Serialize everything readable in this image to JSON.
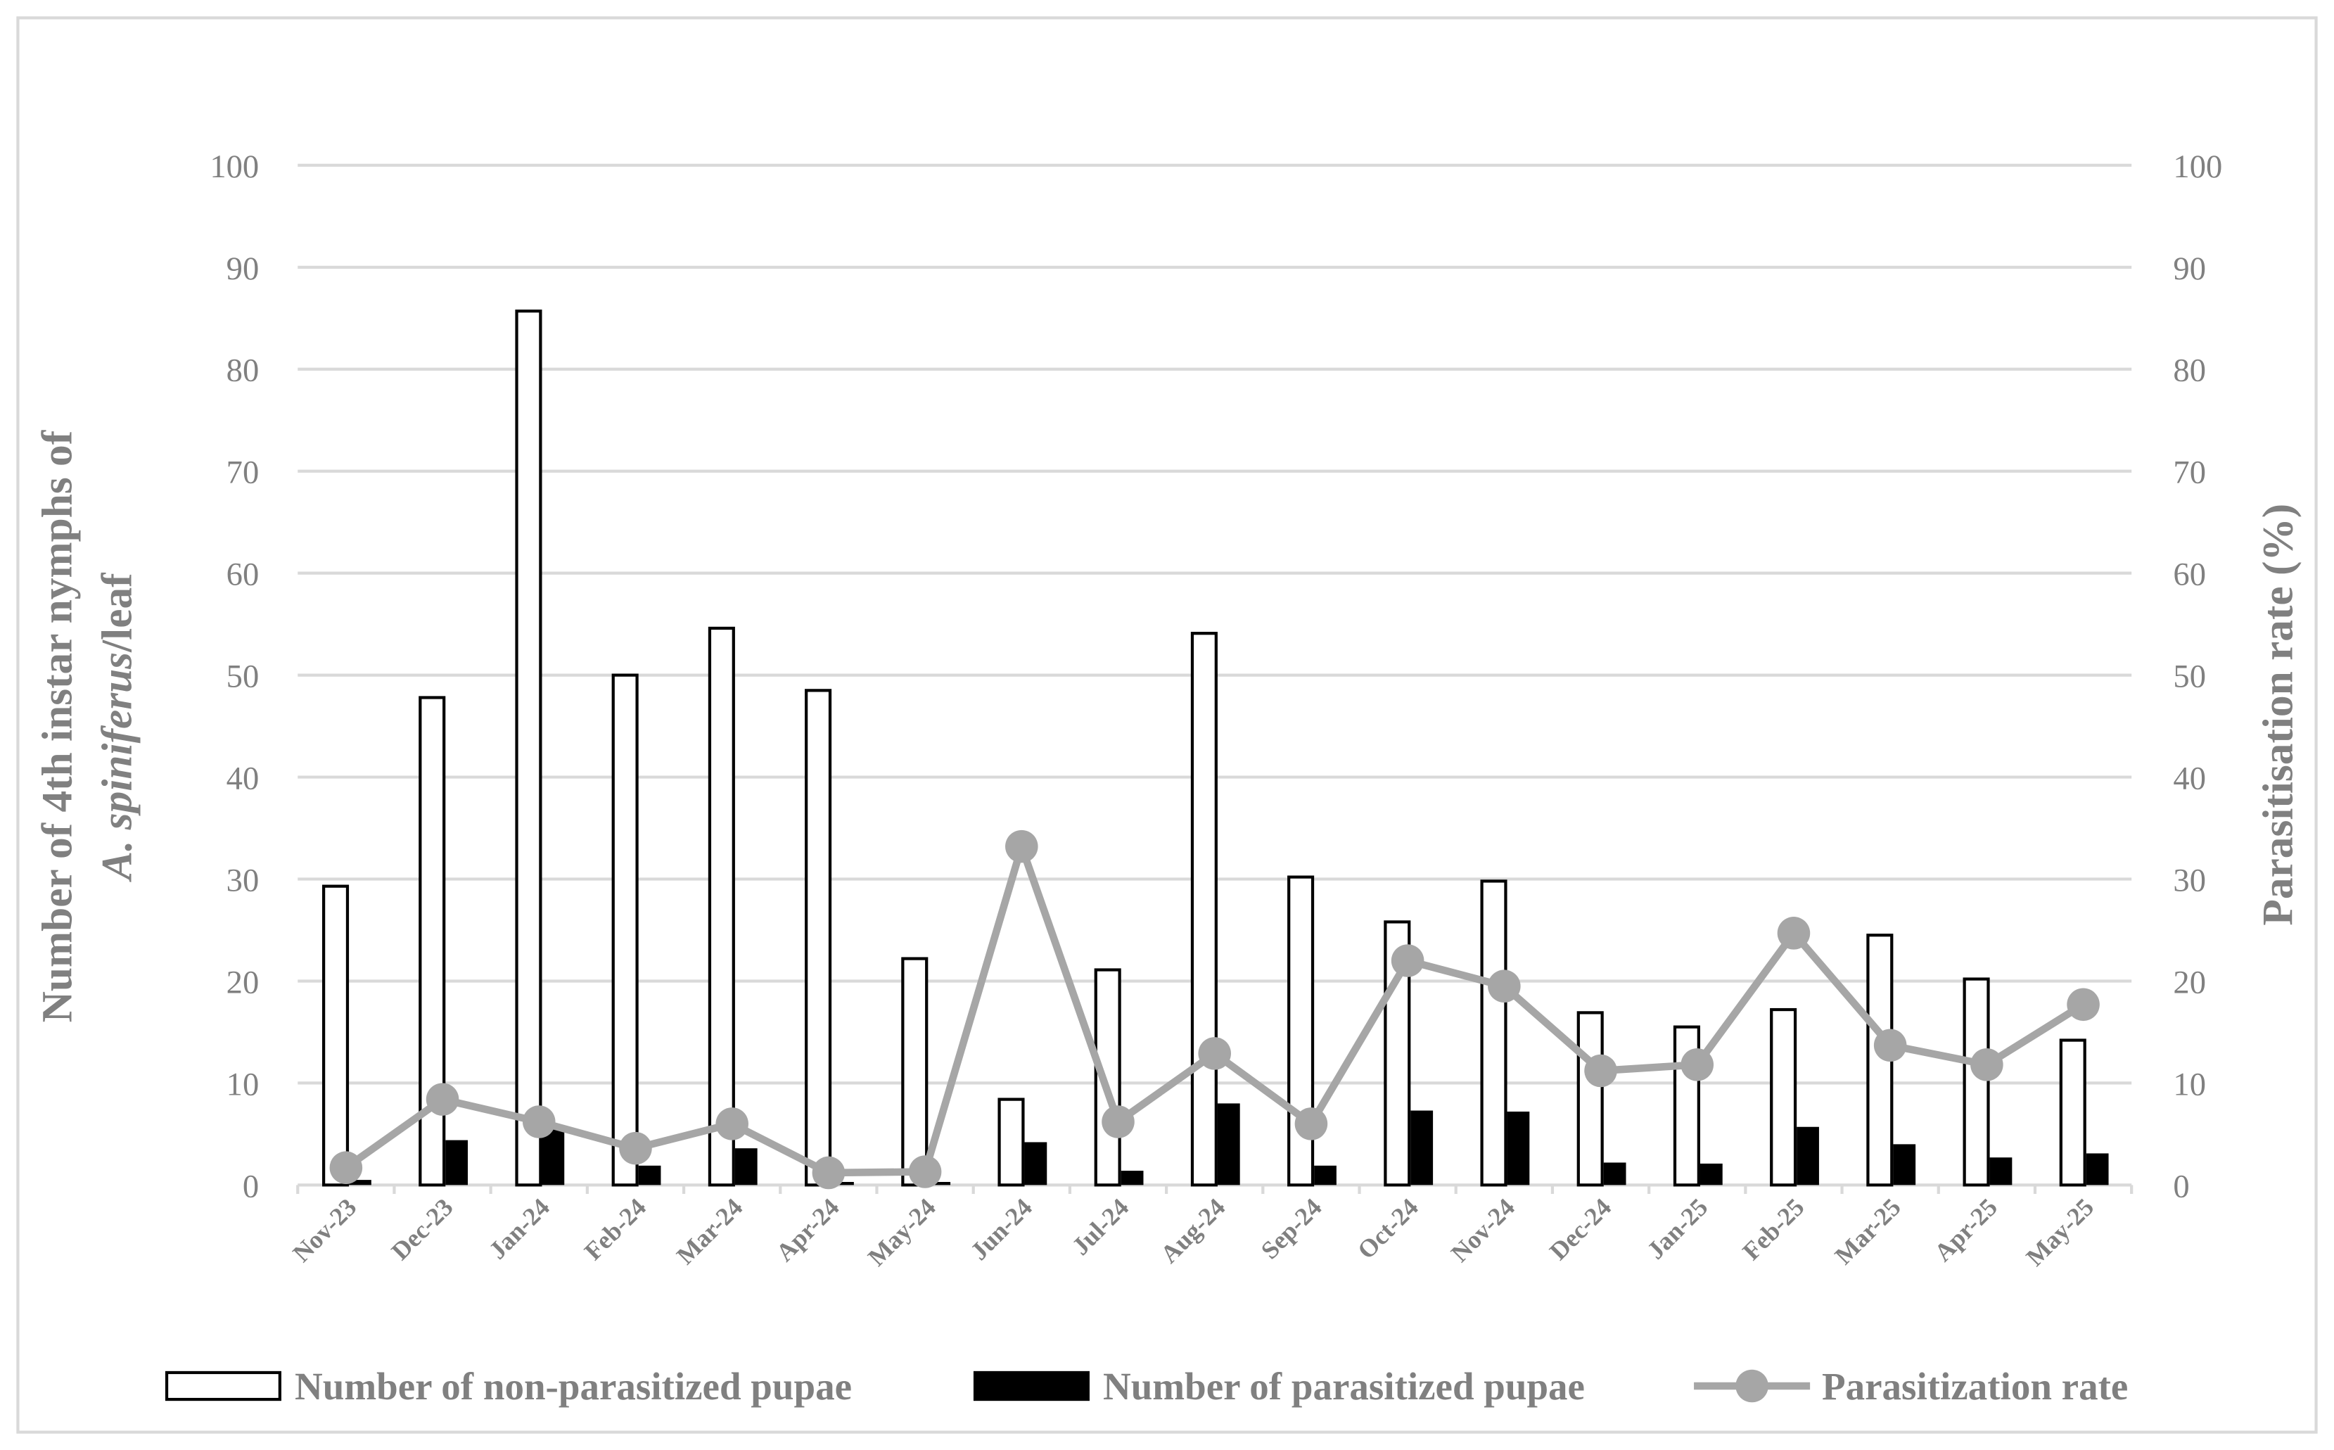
{
  "chart_data": {
    "type": "bar_line",
    "y_label": [
      "Number of 4th instar nymphs of",
      [
        "A. spiniferus",
        "/leaf"
      ]
    ],
    "y2_label": "Parasitisation rate (%)",
    "categories": [
      "Nov-23",
      "Dec-23",
      "Jan-24",
      "Feb-24",
      "Mar-24",
      "Apr-24",
      "May-24",
      "Jun-24",
      "Jul-24",
      "Aug-24",
      "Sep-24",
      "Oct-24",
      "Nov-24",
      "Dec-24",
      "Jan-25",
      "Feb-25",
      "Mar-25",
      "Apr-25",
      "May-25"
    ],
    "series": [
      {
        "name": "Number of non-parasitized pupae",
        "type": "bar",
        "color": "#ffffff",
        "values": [
          29.3,
          47.8,
          85.7,
          50.0,
          54.6,
          48.5,
          22.2,
          8.4,
          21.1,
          54.1,
          30.2,
          25.8,
          29.8,
          16.9,
          15.5,
          17.2,
          24.5,
          20.2,
          14.2
        ]
      },
      {
        "name": "Number of parasitized pupae",
        "type": "bar",
        "color": "#000000",
        "values": [
          0.5,
          4.4,
          5.5,
          1.9,
          3.6,
          0.3,
          0.3,
          4.2,
          1.4,
          8.0,
          1.9,
          7.3,
          7.2,
          2.2,
          2.1,
          5.7,
          4.0,
          2.7,
          3.1
        ]
      },
      {
        "name": "Parasitization rate",
        "type": "line",
        "axis": "y2",
        "color": "#a6a6a6",
        "values": [
          1.7,
          8.4,
          6.2,
          3.6,
          6.0,
          1.2,
          1.3,
          33.2,
          6.2,
          12.9,
          6.0,
          22.0,
          19.5,
          11.2,
          11.8,
          24.7,
          13.7,
          11.8,
          17.7
        ]
      }
    ],
    "ylim": [
      0,
      100
    ],
    "yticks": [
      0,
      10,
      20,
      30,
      40,
      50,
      60,
      70,
      80,
      90,
      100
    ],
    "y2lim": [
      0,
      100
    ],
    "y2ticks": [
      0,
      10,
      20,
      30,
      40,
      50,
      60,
      70,
      80,
      90,
      100
    ],
    "grid": true,
    "legend": "bottom"
  }
}
